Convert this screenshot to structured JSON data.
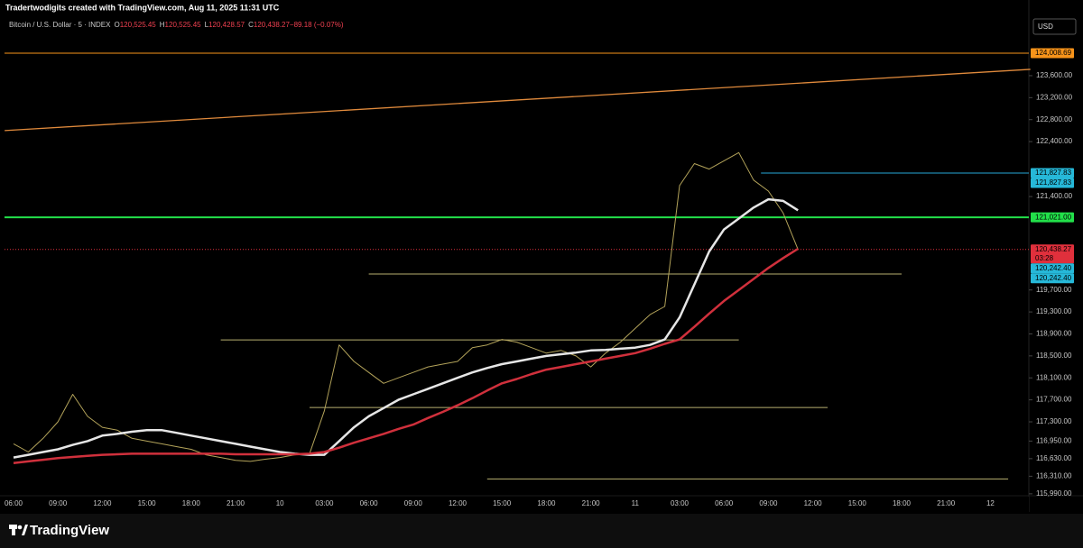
{
  "header": {
    "credit": "Tradertwodigits created with TradingView.com, Aug 11, 2025 11:31 UTC",
    "symbol": "Bitcoin / U.S. Dollar · 5 · INDEX",
    "ohlc": [
      "O",
      "120,525.45",
      "H",
      "120,525.45",
      "L",
      "120,428.57",
      "C",
      "120,438.27",
      "−89.18 (−0.07%)"
    ],
    "currency": "USD"
  },
  "footer": {
    "brand": "TradingView"
  },
  "chart_data": {
    "type": "line",
    "categories": [
      "06:00",
      null,
      null,
      "09:00",
      null,
      null,
      "12:00",
      null,
      null,
      "15:00",
      null,
      null,
      "18:00",
      null,
      null,
      "21:00",
      null,
      null,
      "10",
      null,
      null,
      "03:00",
      null,
      null,
      "06:00",
      null,
      null,
      "09:00",
      null,
      null,
      "12:00",
      null,
      null,
      "15:00",
      null,
      null,
      "18:00",
      null,
      null,
      "21:00",
      null,
      null,
      "11",
      null,
      null,
      "03:00",
      null,
      null,
      "06:00",
      null,
      null,
      "09:00",
      null,
      null,
      "12:00",
      null,
      null,
      "15:00",
      null,
      null,
      "18:00",
      null,
      null,
      "21:00",
      null,
      null,
      "12"
    ],
    "series": [
      {
        "color": "#b3a35a",
        "width": 1,
        "values": [
          116900,
          116750,
          117000,
          117300,
          117800,
          117400,
          117200,
          117150,
          117000,
          116950,
          116900,
          116850,
          116800,
          116700,
          116650,
          116600,
          116580,
          116620,
          116650,
          116700,
          116720,
          117500,
          118700,
          118400,
          118200,
          118000,
          118100,
          118200,
          118300,
          118350,
          118400,
          118650,
          118700,
          118800,
          118750,
          118650,
          118550,
          118600,
          118500,
          118300,
          118550,
          118750,
          119000,
          119250,
          119400,
          121600,
          122000,
          121900,
          122050,
          122200,
          121700,
          121500,
          121100,
          120438.27,
          null,
          null,
          null,
          null,
          null,
          null,
          null,
          null,
          null,
          null,
          null,
          null,
          null
        ]
      },
      {
        "color": "#e6e6e6",
        "width": 2.5,
        "values": [
          116650,
          116700,
          116750,
          116800,
          116880,
          116950,
          117050,
          117080,
          117120,
          117150,
          117150,
          117100,
          117050,
          117000,
          116950,
          116900,
          116850,
          116800,
          116750,
          116720,
          116700,
          116700,
          116950,
          117200,
          117400,
          117550,
          117700,
          117800,
          117900,
          118000,
          118100,
          118200,
          118280,
          118350,
          118400,
          118450,
          118500,
          118530,
          118560,
          118600,
          118610,
          118630,
          118650,
          118700,
          118800,
          119200,
          119800,
          120400,
          120800,
          121000,
          121200,
          121350,
          121320,
          121150,
          null,
          null,
          null,
          null,
          null,
          null,
          null,
          null,
          null,
          null,
          null,
          null,
          null
        ]
      },
      {
        "color": "#d0303c",
        "width": 2.5,
        "values": [
          116550,
          116580,
          116610,
          116640,
          116660,
          116680,
          116700,
          116710,
          116720,
          116720,
          116720,
          116720,
          116720,
          116720,
          116720,
          116710,
          116710,
          116710,
          116710,
          116710,
          116720,
          116750,
          116830,
          116920,
          117000,
          117080,
          117170,
          117250,
          117370,
          117480,
          117600,
          117730,
          117870,
          118000,
          118080,
          118170,
          118250,
          118300,
          118350,
          118400,
          118450,
          118500,
          118550,
          118630,
          118720,
          118800,
          119030,
          119270,
          119500,
          119700,
          119900,
          120100,
          120280,
          120450,
          null,
          null,
          null,
          null,
          null,
          null,
          null,
          null,
          null,
          null,
          null,
          null,
          null
        ]
      }
    ],
    "ylim": [
      115660,
      124977
    ],
    "yticks": [
      {
        "value": 123600,
        "label": "123,600.00"
      },
      {
        "value": 123200,
        "label": "123,200.00"
      },
      {
        "value": 122800,
        "label": "122,800.00"
      },
      {
        "value": 122400,
        "label": "122,400.00"
      },
      {
        "value": 121400,
        "label": "121,400.00"
      },
      {
        "value": 119700,
        "label": "119,700.00"
      },
      {
        "value": 119300,
        "label": "119,300.00"
      },
      {
        "value": 118900,
        "label": "118,900.00"
      },
      {
        "value": 118500,
        "label": "118,500.00"
      },
      {
        "value": 118100,
        "label": "118,100.00"
      },
      {
        "value": 117700,
        "label": "117,700.00"
      },
      {
        "value": 117300,
        "label": "117,300.00"
      },
      {
        "value": 116950,
        "label": "116,950.00"
      },
      {
        "value": 116630,
        "label": "116,630.00"
      },
      {
        "value": 116310,
        "label": "116,310.00"
      },
      {
        "value": 115990,
        "label": "115,990.00"
      }
    ],
    "levels": [
      {
        "value": 124008.69,
        "color": "#f7931a"
      },
      {
        "value": 121021,
        "color": "#22e04a",
        "width": 2
      },
      {
        "value": 120438.27,
        "color": "#e0303c",
        "dash": true
      }
    ],
    "segments": [
      {
        "value": 121827.83,
        "from": 50.5,
        "to": 68.6,
        "color": "#26a7d8"
      },
      {
        "value": 119990,
        "from": 24,
        "to": 60,
        "color": "#b8b070"
      },
      {
        "value": 118790,
        "from": 14,
        "to": 49,
        "color": "#b8b070"
      },
      {
        "value": 117560,
        "from": 20,
        "to": 55,
        "color": "#b8b070"
      },
      {
        "value": 116260,
        "from": 32,
        "to": 67.2,
        "color": "#b8b070"
      }
    ],
    "trendline": {
      "from": [
        -0.6,
        122600
      ],
      "to": [
        68.7,
        123715
      ],
      "color": "#e08a3c"
    },
    "tags": [
      {
        "value": 124008.69,
        "label": "124,008.69",
        "color": "#f7931a"
      },
      {
        "value": 121827.83,
        "label": "121,827.83",
        "color": "#26b8d8"
      },
      {
        "value": 121827.83,
        "label": "121,827.83",
        "color": "#26b8d8"
      },
      {
        "value": 121021,
        "label": "121,021.00",
        "color": "#22e04a"
      },
      {
        "value": 120438.27,
        "label": "120,438.27",
        "sub": "03:28",
        "color": "#e0303c"
      },
      {
        "value": 120242.4,
        "label": "120,242.40",
        "color": "#26b8d8"
      },
      {
        "value": 120242.4,
        "label": "120,242.40",
        "color": "#26b8d8"
      }
    ]
  }
}
